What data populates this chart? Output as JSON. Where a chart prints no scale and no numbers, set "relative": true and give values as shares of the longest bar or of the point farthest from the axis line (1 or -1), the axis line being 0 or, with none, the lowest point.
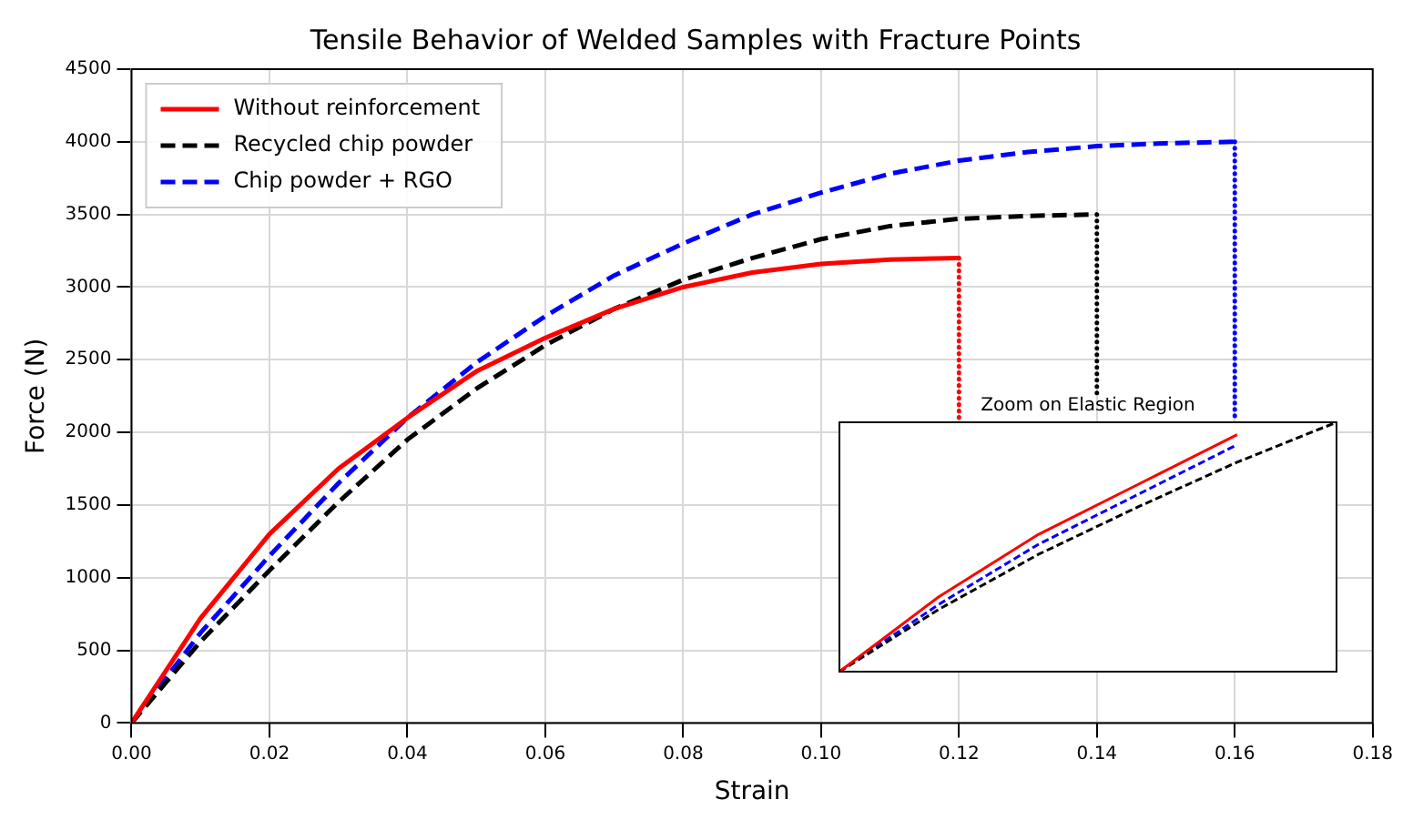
{
  "chart_data": [
    {
      "type": "line",
      "title": "Tensile Behavior of Welded Samples with Fracture Points",
      "xlabel": "Strain",
      "ylabel": "Force (N)",
      "series": [
        {
          "name": "Without reinforcement",
          "color": "#ff0000",
          "line_style": "solid",
          "x": [
            0,
            0.01,
            0.02,
            0.03,
            0.04,
            0.05,
            0.06,
            0.07,
            0.08,
            0.09,
            0.1,
            0.11,
            0.12
          ],
          "values": [
            0,
            720,
            1300,
            1750,
            2100,
            2420,
            2650,
            2850,
            3000,
            3100,
            3160,
            3190,
            3200
          ]
        },
        {
          "name": "Recycled chip powder",
          "color": "#000000",
          "line_style": "dashed",
          "x": [
            0,
            0.01,
            0.02,
            0.03,
            0.04,
            0.05,
            0.06,
            0.07,
            0.08,
            0.09,
            0.1,
            0.11,
            0.12,
            0.13,
            0.14
          ],
          "values": [
            0,
            560,
            1050,
            1520,
            1950,
            2300,
            2600,
            2850,
            3050,
            3200,
            3330,
            3420,
            3470,
            3490,
            3500
          ]
        },
        {
          "name": "Chip powder + RGO",
          "color": "#0000ff",
          "line_style": "dashed",
          "x": [
            0,
            0.01,
            0.02,
            0.03,
            0.04,
            0.05,
            0.06,
            0.07,
            0.08,
            0.09,
            0.1,
            0.11,
            0.12,
            0.13,
            0.14,
            0.15,
            0.16
          ],
          "values": [
            0,
            620,
            1150,
            1650,
            2100,
            2480,
            2800,
            3080,
            3300,
            3500,
            3650,
            3780,
            3870,
            3930,
            3970,
            3990,
            4000
          ]
        },
        {
          "color": "#ff0000",
          "line_style": "dotted",
          "x": [
            0.12,
            0.12
          ],
          "values": [
            3200,
            2100
          ]
        },
        {
          "color": "#000000",
          "line_style": "dotted",
          "x": [
            0.14,
            0.14
          ],
          "values": [
            3500,
            2250
          ]
        },
        {
          "color": "#0000ff",
          "line_style": "dotted",
          "x": [
            0.16,
            0.16
          ],
          "values": [
            4000,
            2100
          ]
        }
      ],
      "xlim": [
        0,
        0.18
      ],
      "xticks": [
        {
          "value": 0,
          "label": "0.00"
        },
        {
          "value": 0.02,
          "label": "0.02"
        },
        {
          "value": 0.04,
          "label": "0.04"
        },
        {
          "value": 0.06,
          "label": "0.06"
        },
        {
          "value": 0.08,
          "label": "0.08"
        },
        {
          "value": 0.1,
          "label": "0.10"
        },
        {
          "value": 0.12,
          "label": "0.12"
        },
        {
          "value": 0.14,
          "label": "0.14"
        },
        {
          "value": 0.16,
          "label": "0.16"
        },
        {
          "value": 0.18,
          "label": "0.18"
        }
      ],
      "ylim": [
        0,
        4500
      ],
      "yticks": [
        0,
        500,
        1000,
        1500,
        2000,
        2500,
        3000,
        3500,
        4000,
        4500
      ],
      "grid": true,
      "legend": "top left",
      "marker": "none"
    },
    {
      "type": "line",
      "title": "Zoom on Elastic Region",
      "relative": true,
      "categories": [
        null,
        null,
        null,
        null,
        null,
        null
      ],
      "tick_labels": false,
      "marker": "none",
      "series": [
        {
          "color": "#ff0000",
          "line_style": "solid",
          "values": [
            0,
            0.3,
            0.55,
            0.75,
            0.95,
            null
          ]
        },
        {
          "color": "#000000",
          "line_style": "dashed",
          "values": [
            0,
            0.25,
            0.47,
            0.66,
            0.84,
            1
          ]
        },
        {
          "color": "#0000ff",
          "line_style": "dashed",
          "values": [
            0,
            0.27,
            0.51,
            0.71,
            0.91,
            null
          ]
        }
      ]
    }
  ]
}
